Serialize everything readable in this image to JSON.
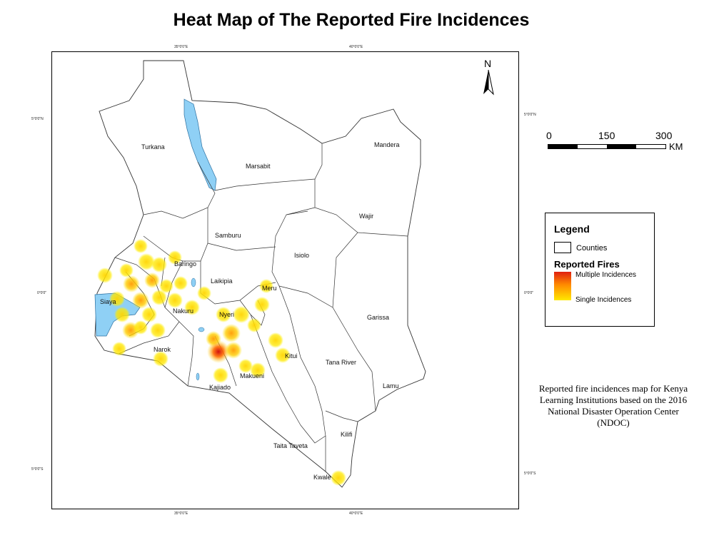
{
  "title": "Heat Map of The Reported Fire Incidences",
  "ticks": {
    "top_left": "35°0'0\"E",
    "top_right": "40°0'0\"E",
    "bottom_left": "35°0'0\"E",
    "bottom_right": "40°0'0\"E",
    "left_n": "5°0'0\"N",
    "left_eq": "0°0'0\"",
    "left_s": "5°0'0\"S",
    "right_n": "5°0'0\"N",
    "right_eq": "0°0'0\"",
    "right_s": "5°0'0\"S"
  },
  "north_arrow": {
    "label": "N"
  },
  "scale_bar": {
    "labels": [
      "0",
      "150",
      "300"
    ],
    "unit": "KM"
  },
  "legend": {
    "title": "Legend",
    "counties_label": "Counties",
    "fires_title": "Reported Fires",
    "multiple_label": "Multiple Incidences",
    "single_label": "Single Incidences"
  },
  "caption": "Reported fire incidences map for Kenya Learning Institutions based on the 2016 National Disaster Operation Center (NDOC)",
  "counties": {
    "turkana": "Turkana",
    "marsabit": "Marsabit",
    "mandera": "Mandera",
    "wajir": "Wajir",
    "samburu": "Samburu",
    "isiolo": "Isiolo",
    "baringo": "Baringo",
    "laikipia": "Laikipia",
    "meru": "Meru",
    "siaya": "Siaya",
    "nakuru": "Nakuru",
    "nyeri": "Nyeri",
    "garissa": "Garissa",
    "kitui": "Kitui",
    "narok": "Narok",
    "tana_river": "Tana River",
    "makueni": "Makueni",
    "kajiado": "Kajiado",
    "lamu": "Lamu",
    "kilifi": "Kilifi",
    "taita_taveta": "Taita Taveta",
    "kwale": "Kwale"
  },
  "colors": {
    "water": "#8fd0f5",
    "single": "#ffe800",
    "multiple": "#e02010"
  }
}
